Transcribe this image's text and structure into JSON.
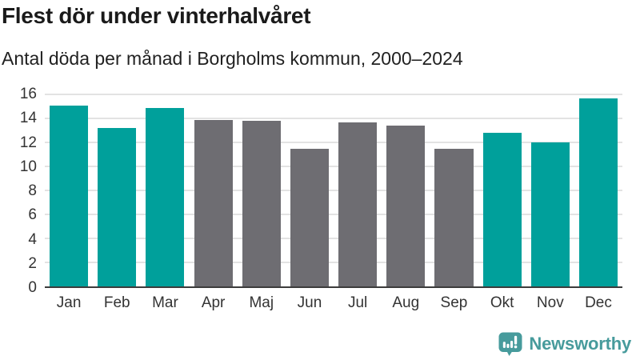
{
  "header": {
    "title": "Flest dör under vinterhalvåret",
    "subtitle": "Antal döda per månad i Borgholms kommun, 2000–2024"
  },
  "chart_data": {
    "type": "bar",
    "title": "Flest dör under vinterhalvåret",
    "subtitle": "Antal döda per månad i Borgholms kommun, 2000–2024",
    "categories": [
      "Jan",
      "Feb",
      "Mar",
      "Apr",
      "Maj",
      "Jun",
      "Jul",
      "Aug",
      "Sep",
      "Okt",
      "Nov",
      "Dec"
    ],
    "values": [
      15.1,
      13.2,
      14.9,
      13.9,
      13.8,
      11.5,
      13.7,
      13.4,
      11.5,
      12.8,
      12.0,
      15.7
    ],
    "bar_color_keys": [
      "teal",
      "teal",
      "teal",
      "gray",
      "gray",
      "gray",
      "gray",
      "gray",
      "gray",
      "teal",
      "teal",
      "teal"
    ],
    "xlabel": "",
    "ylabel": "",
    "ylim": [
      0,
      16
    ],
    "yticks": [
      0,
      2,
      4,
      6,
      8,
      10,
      12,
      14,
      16
    ],
    "grid": "horizontal",
    "legend": "none"
  },
  "colors": {
    "teal": "#00a09b",
    "gray": "#6e6d72",
    "gridline": "#e3e3e3",
    "axis_line": "#3c3c3c",
    "title_text": "#1a1a1a",
    "tick_text": "#333333",
    "brand_teal": "#479b9c"
  },
  "footer": {
    "brand": "Newsworthy",
    "logo_icon": "newsworthy-logo-icon"
  }
}
